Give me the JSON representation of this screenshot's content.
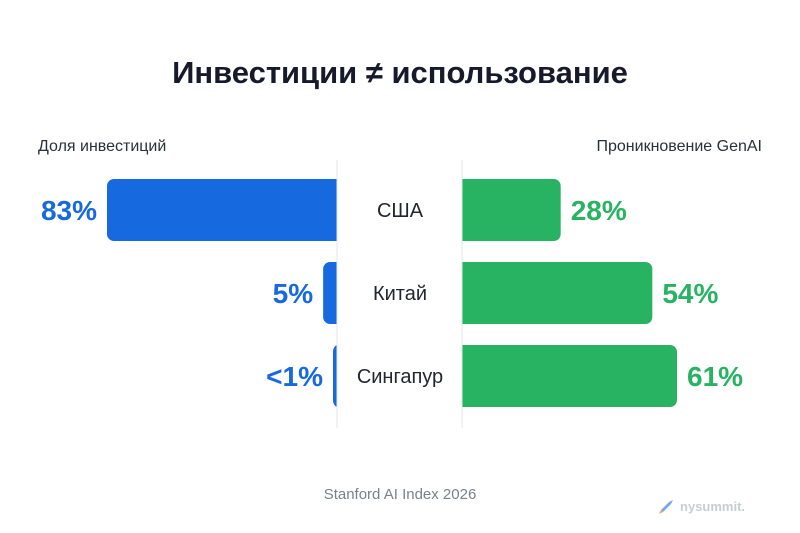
{
  "chart_data": {
    "type": "bar",
    "title": "Инвестиции ≠ использование",
    "categories": [
      "США",
      "Китай",
      "Сингапур"
    ],
    "series": [
      {
        "name": "Доля инвестиций",
        "values": [
          83,
          5,
          1
        ],
        "labels": [
          "83%",
          "5%",
          "<1%"
        ],
        "color": "#1769e0"
      },
      {
        "name": "Проникновение GenAI",
        "values": [
          28,
          54,
          61
        ],
        "labels": [
          "28%",
          "54%",
          "61%"
        ],
        "color": "#27b361"
      }
    ],
    "ylim": [
      0,
      100
    ],
    "grid": false,
    "legend": "top"
  },
  "source": "Stanford AI Index 2026",
  "watermark": {
    "text": "nysummit.",
    "icon": "rocket-icon"
  }
}
